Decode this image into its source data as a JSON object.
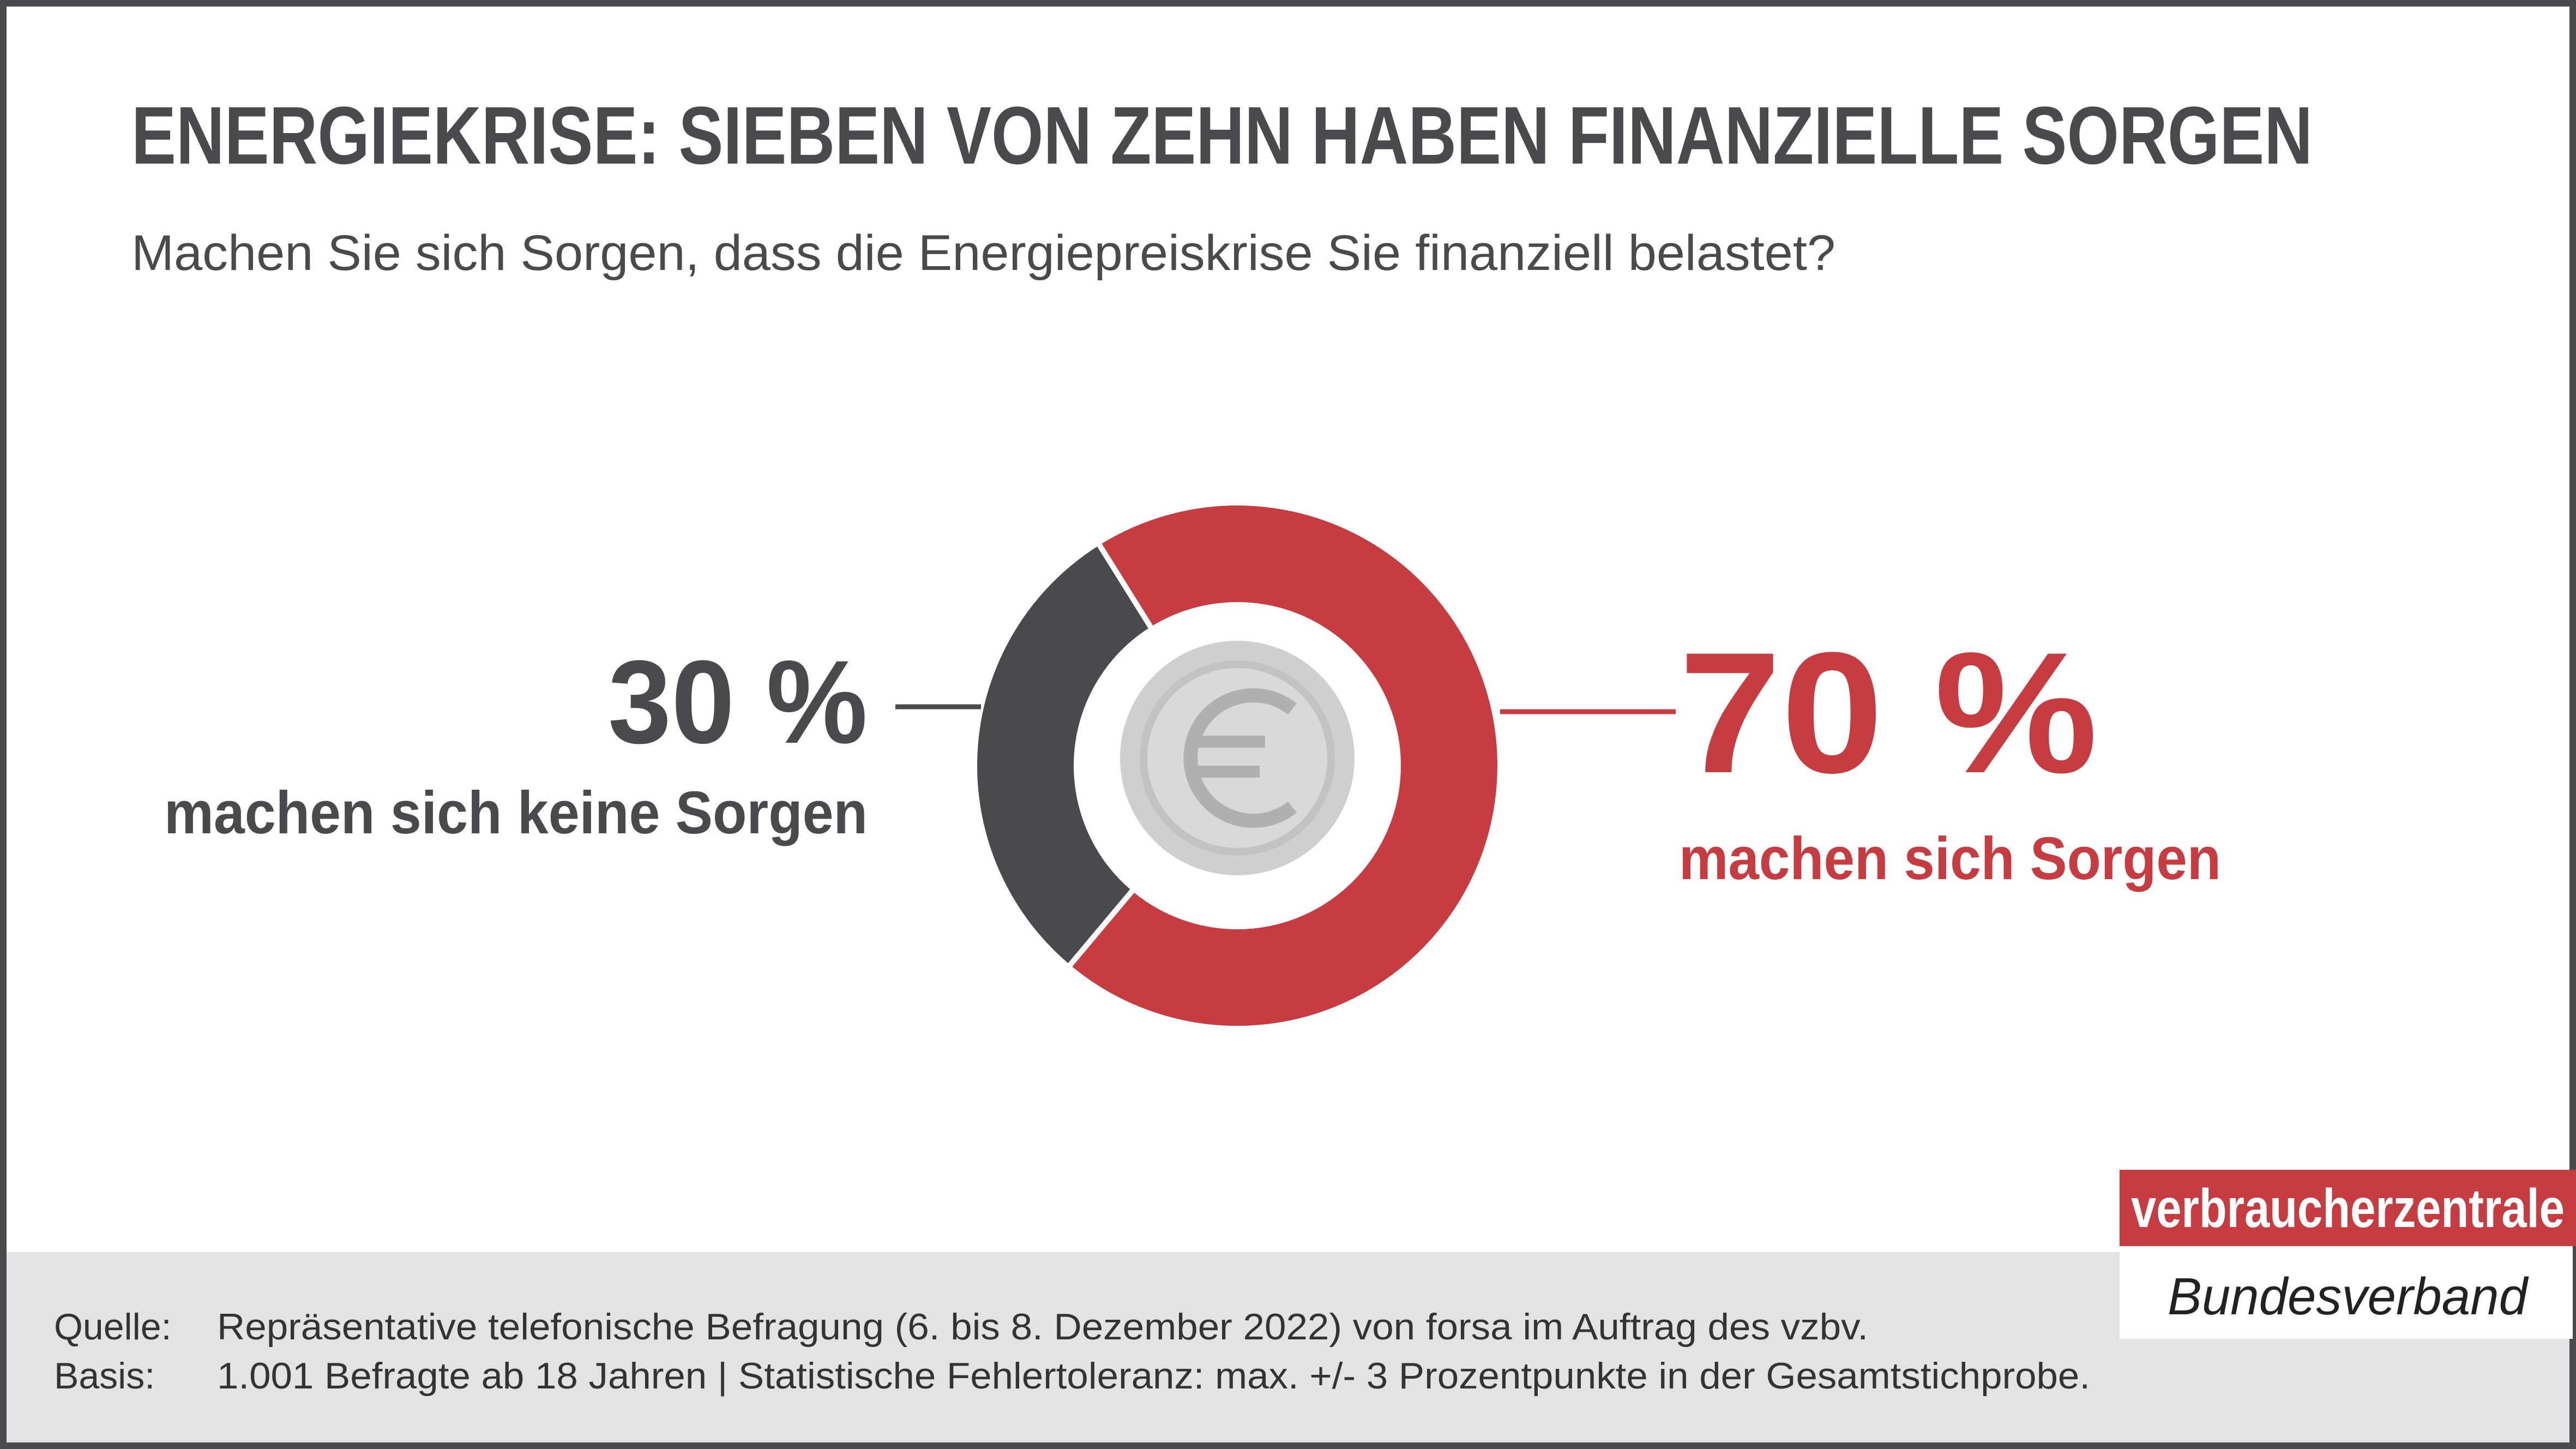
{
  "chart_data": {
    "type": "pie",
    "title": "ENERGIEKRISE: SIEBEN VON ZEHN HABEN FINANZIELLE SORGEN",
    "subtitle": "Machen Sie sich Sorgen, dass die Energiepreiskrise Sie finanziell belastet?",
    "categories": [
      "machen sich Sorgen",
      "machen sich keine Sorgen"
    ],
    "values": [
      70,
      30
    ],
    "value_labels": [
      "70 %",
      "30 %"
    ],
    "colors": [
      "#c63c40",
      "#4a4a4c"
    ]
  },
  "footer": [
    {
      "label": "Quelle:",
      "text": "Repräsentative telefonische Befragung (6. bis 8. Dezember 2022) von forsa im Auftrag des vzbv."
    },
    {
      "label": "Basis:",
      "text": "1.001 Befragte ab 18 Jahren | Statistische Fehlertoleranz: max. +/- 3 Prozentpunkte in der Gesamtstichprobe."
    }
  ],
  "logo": {
    "name": "verbraucherzentrale",
    "subname": "Bundesverband"
  }
}
